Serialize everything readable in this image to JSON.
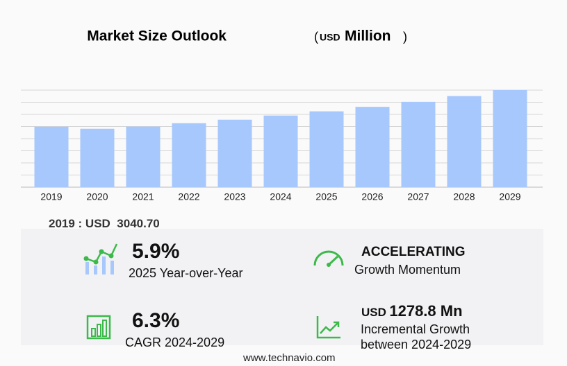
{
  "chart_data": {
    "type": "bar",
    "title": "Market Size Outlook",
    "unit_open": "(",
    "unit_currency": "USD",
    "unit": "Million",
    "unit_close": ")",
    "categories": [
      "2019",
      "2020",
      "2021",
      "2022",
      "2023",
      "2024",
      "2025",
      "2026",
      "2027",
      "2028",
      "2029"
    ],
    "values": [
      3040.7,
      2936,
      3045,
      3216,
      3390,
      3600,
      3812,
      4037,
      4291,
      4580,
      4879
    ],
    "color": "#a7c8fc",
    "ylim": [
      0,
      4879
    ],
    "grid": true
  },
  "base_year": {
    "label": "2019 : USD",
    "value": "3040.70"
  },
  "stats": {
    "yoy": {
      "value": "5.9%",
      "label": "2025 Year-over-Year"
    },
    "momentum": {
      "value": "ACCELERATING",
      "label": "Growth Momentum"
    },
    "cagr": {
      "value": "6.3%",
      "label": "CAGR 2024-2029"
    },
    "incremental": {
      "currency": "USD",
      "value": "1278.8 Mn",
      "label": "Incremental Growth",
      "label2": "between 2024-2029"
    }
  },
  "footer": "www.technavio.com"
}
